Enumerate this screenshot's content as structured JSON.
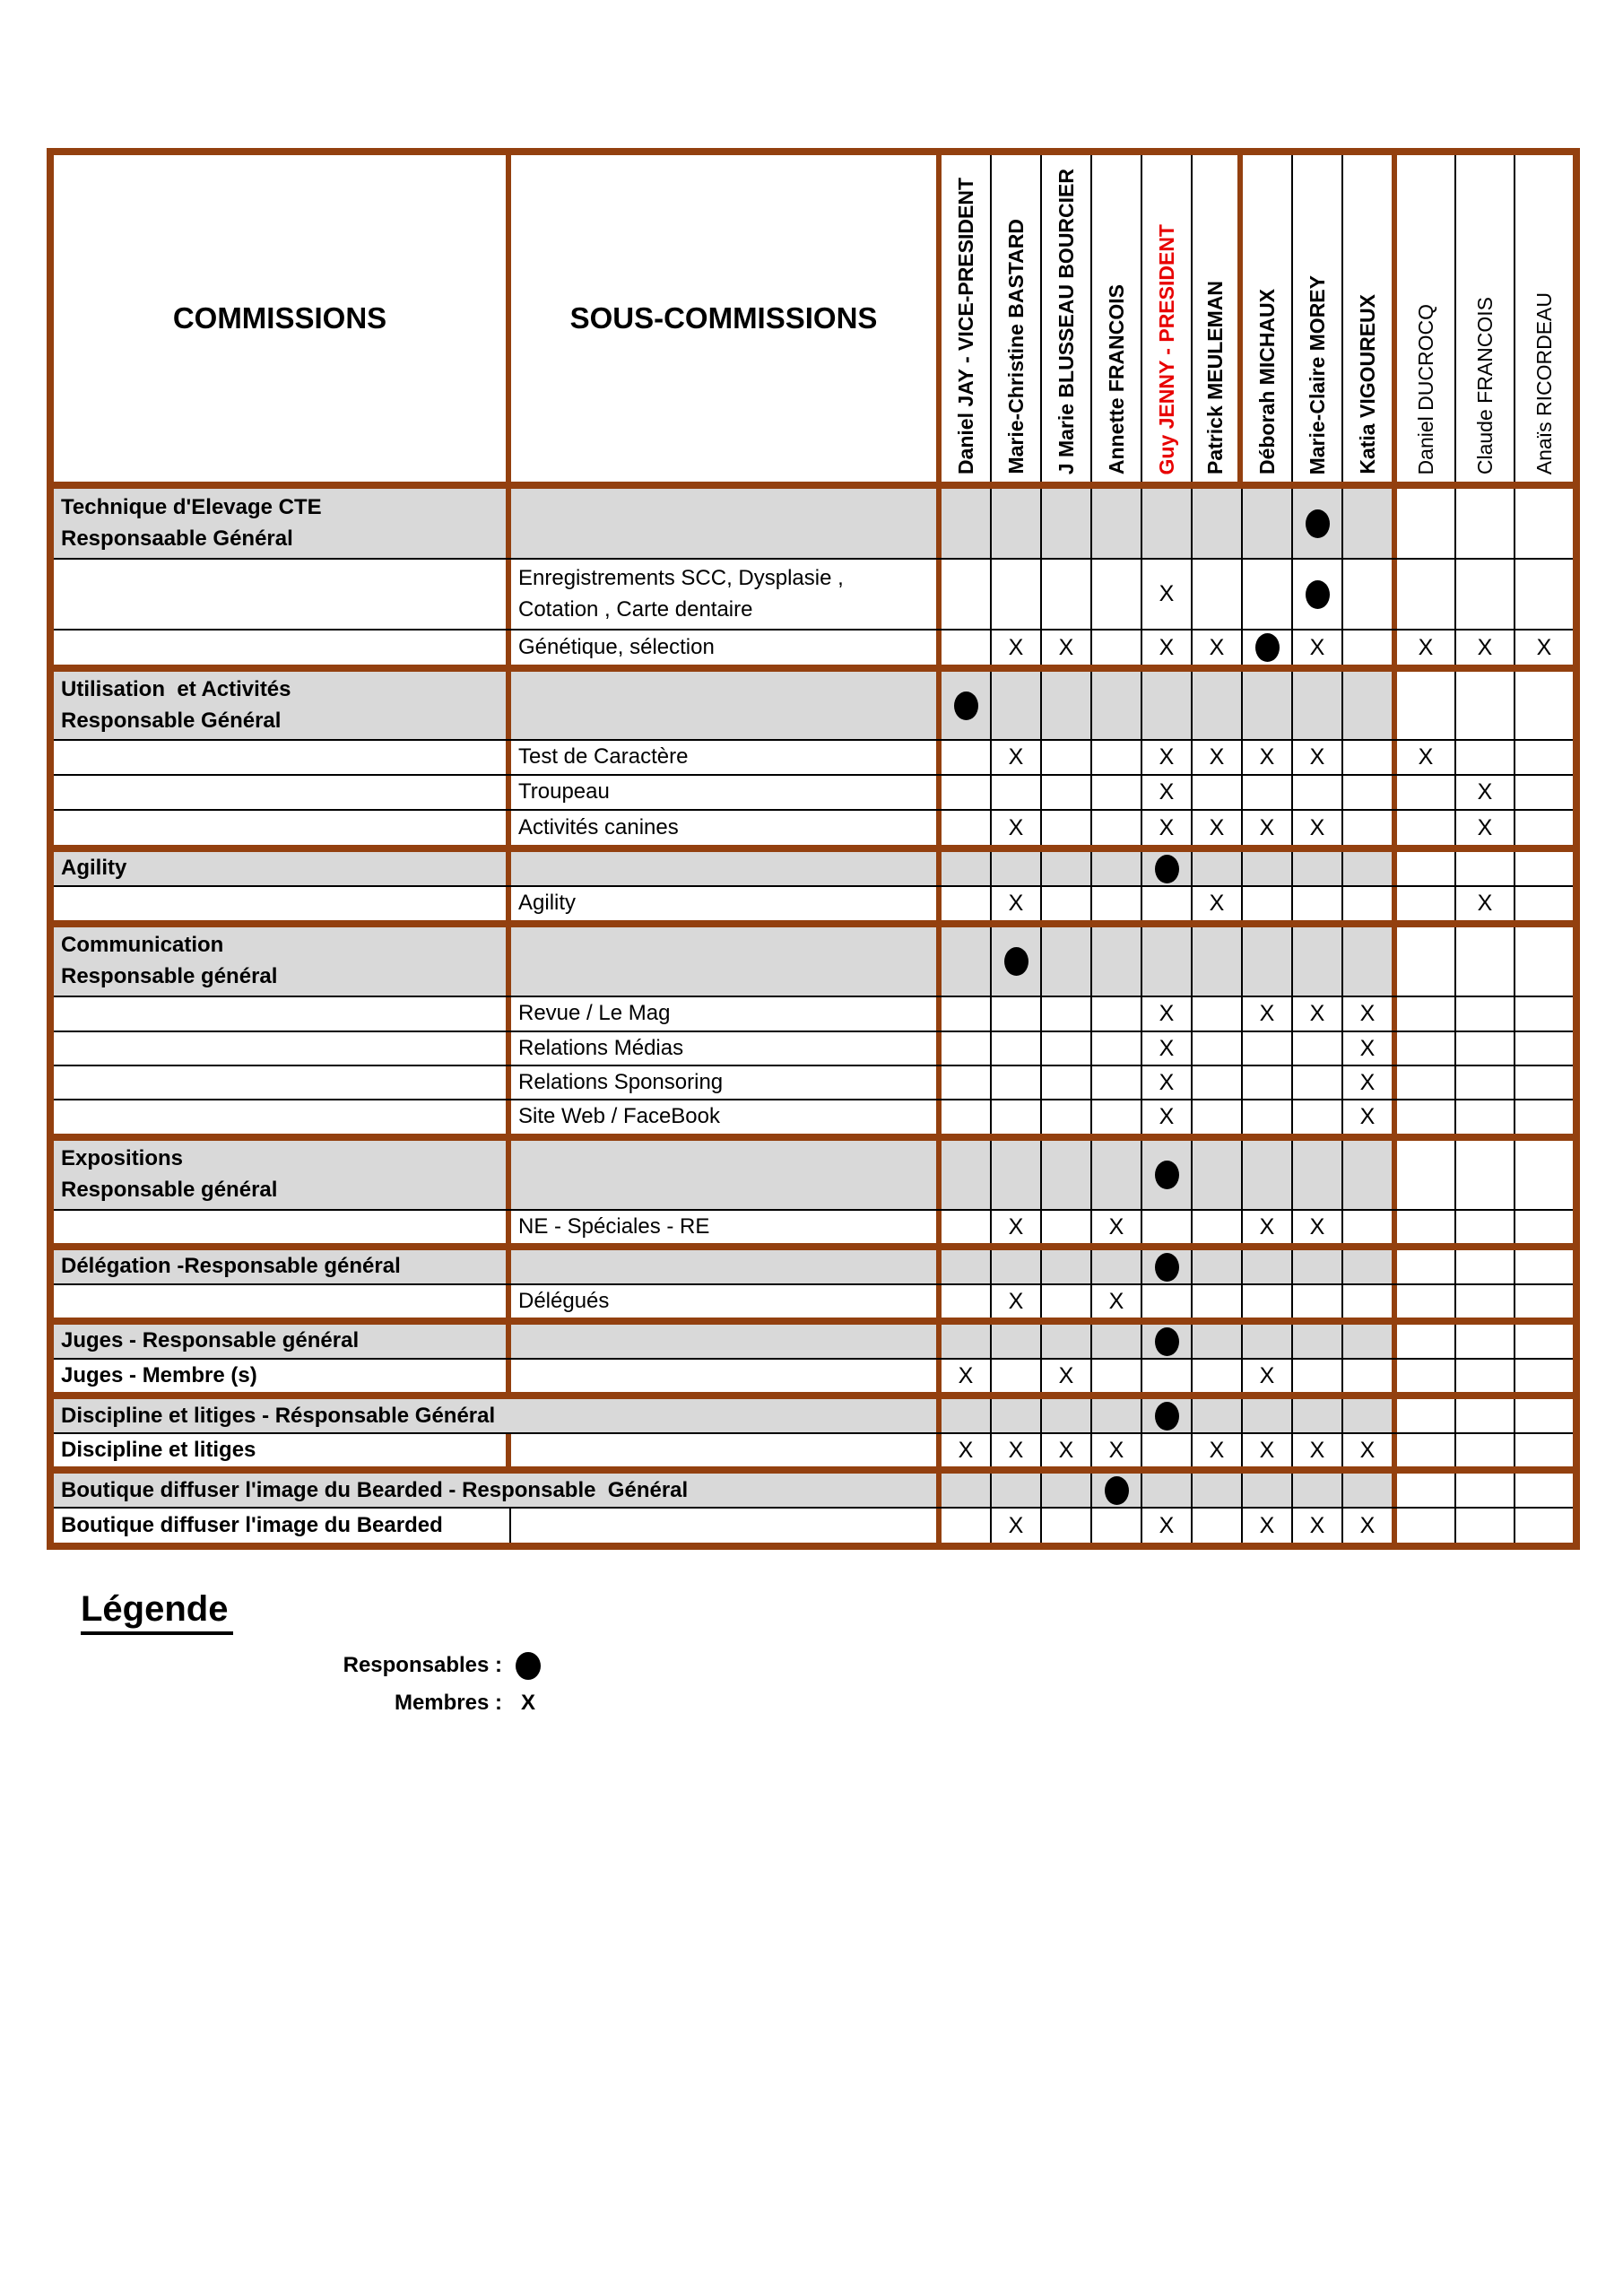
{
  "colors": {
    "border_brown": "#93400f",
    "row_gray": "#d9d9d9",
    "president_red": "#e80000"
  },
  "header": {
    "commissions_label": "COMMISSIONS",
    "sous_commissions_label": "SOUS-COMMISSIONS",
    "people": [
      {
        "name": "Daniel JAY - VICE-PRESIDENT",
        "bold": true,
        "red": false
      },
      {
        "name": "Marie-Christine BASTARD",
        "bold": true,
        "red": false
      },
      {
        "name": "J Marie BLUSSEAU BOURCIER",
        "bold": true,
        "red": false
      },
      {
        "name": "Annette FRANCOIS",
        "bold": true,
        "red": false
      },
      {
        "name": "Guy JENNY - PRESIDENT",
        "bold": true,
        "red": true
      },
      {
        "name": "Patrick MEULEMAN",
        "bold": true,
        "red": false
      },
      {
        "name": "Déborah MICHAUX",
        "bold": true,
        "red": false
      },
      {
        "name": "Marie-Claire MOREY",
        "bold": true,
        "red": false
      },
      {
        "name": "Katia VIGOUREUX",
        "bold": true,
        "red": false
      },
      {
        "name": "Daniel DUCROCQ",
        "bold": false,
        "red": false
      },
      {
        "name": "Claude FRANCOIS",
        "bold": false,
        "red": false
      },
      {
        "name": "Anaïs RICORDEAU",
        "bold": false,
        "red": false
      }
    ]
  },
  "marks_legend": {
    "responsable_symbol": "dot",
    "membre_symbol": "X"
  },
  "rows": [
    {
      "commission": "Technique d'Elevage CTE\nResponsaable Général",
      "sous": "",
      "gray": true,
      "merged": false,
      "h": 77,
      "end": false,
      "marks": [
        "",
        "",
        "",
        "",
        "",
        "",
        "",
        "R",
        "",
        "",
        "",
        ""
      ]
    },
    {
      "commission": "",
      "sous": "Enregistrements SCC, Dysplasie ,\nCotation , Carte dentaire",
      "gray": false,
      "merged": false,
      "h": 77,
      "end": false,
      "marks": [
        "",
        "",
        "",
        "",
        "X",
        "",
        "",
        "R",
        "",
        "",
        "",
        ""
      ]
    },
    {
      "commission": "",
      "sous": "Génétique, sélection",
      "gray": false,
      "merged": false,
      "h": 38,
      "end": true,
      "marks": [
        "",
        "X",
        "X",
        "",
        "X",
        "X",
        "R",
        "X",
        "",
        "X",
        "X",
        "X"
      ]
    },
    {
      "commission": "Utilisation  et Activités\nResponsable Général",
      "sous": "",
      "gray": true,
      "merged": false,
      "h": 75,
      "end": false,
      "marks": [
        "R",
        "",
        "",
        "",
        "",
        "",
        "",
        "",
        "",
        "",
        "",
        ""
      ]
    },
    {
      "commission": "",
      "sous": "Test de Caractère",
      "gray": false,
      "merged": false,
      "h": 37,
      "end": false,
      "marks": [
        "",
        "X",
        "",
        "",
        "X",
        "X",
        "X",
        "X",
        "",
        "X",
        "",
        ""
      ]
    },
    {
      "commission": "",
      "sous": "Troupeau",
      "gray": false,
      "merged": false,
      "h": 37,
      "end": false,
      "marks": [
        "",
        "",
        "",
        "",
        "X",
        "",
        "",
        "",
        "",
        "",
        "X",
        ""
      ]
    },
    {
      "commission": "",
      "sous": "Activités canines",
      "gray": false,
      "merged": false,
      "h": 38,
      "end": true,
      "marks": [
        "",
        "X",
        "",
        "",
        "X",
        "X",
        "X",
        "X",
        "",
        "",
        "X",
        ""
      ]
    },
    {
      "commission": "Agility",
      "sous": "",
      "gray": true,
      "merged": false,
      "h": 37,
      "end": false,
      "marks": [
        "",
        "",
        "",
        "",
        "R",
        "",
        "",
        "",
        "",
        "",
        "",
        ""
      ]
    },
    {
      "commission": "",
      "sous": "Agility",
      "gray": false,
      "merged": false,
      "h": 37,
      "end": true,
      "marks": [
        "",
        "X",
        "",
        "",
        "",
        "X",
        "",
        "",
        "",
        "",
        "X",
        ""
      ]
    },
    {
      "commission": "Communication\nResponsable général",
      "sous": "",
      "gray": true,
      "merged": false,
      "h": 76,
      "end": false,
      "marks": [
        "",
        "R",
        "",
        "",
        "",
        "",
        "",
        "",
        "",
        "",
        "",
        ""
      ]
    },
    {
      "commission": "",
      "sous": "Revue / Le Mag",
      "gray": false,
      "merged": false,
      "h": 37,
      "end": false,
      "marks": [
        "",
        "",
        "",
        "",
        "X",
        "",
        "X",
        "X",
        "X",
        "",
        "",
        ""
      ]
    },
    {
      "commission": "",
      "sous": "Relations Médias",
      "gray": false,
      "merged": false,
      "h": 36,
      "end": false,
      "marks": [
        "",
        "",
        "",
        "",
        "X",
        "",
        "",
        "",
        "X",
        "",
        "",
        ""
      ]
    },
    {
      "commission": "",
      "sous": "Relations Sponsoring",
      "gray": false,
      "merged": false,
      "h": 36,
      "end": false,
      "marks": [
        "",
        "",
        "",
        "",
        "X",
        "",
        "",
        "",
        "X",
        "",
        "",
        ""
      ]
    },
    {
      "commission": "",
      "sous": "Site Web / FaceBook",
      "gray": false,
      "merged": false,
      "h": 37,
      "end": true,
      "marks": [
        "",
        "",
        "",
        "",
        "X",
        "",
        "",
        "",
        "X",
        "",
        "",
        ""
      ]
    },
    {
      "commission": "Expositions\nResponsable général",
      "sous": "",
      "gray": true,
      "merged": false,
      "h": 76,
      "end": false,
      "marks": [
        "",
        "",
        "",
        "",
        "R",
        "",
        "",
        "",
        "",
        "",
        "",
        ""
      ]
    },
    {
      "commission": "",
      "sous": "NE - Spéciales - RE",
      "gray": false,
      "merged": false,
      "h": 36,
      "end": true,
      "marks": [
        "",
        "X",
        "",
        "X",
        "",
        "",
        "X",
        "X",
        "",
        "",
        "",
        ""
      ]
    },
    {
      "commission": "Délégation -Responsable général",
      "sous": "",
      "gray": true,
      "merged": false,
      "h": 37,
      "end": false,
      "marks": [
        "",
        "",
        "",
        "",
        "R",
        "",
        "",
        "",
        "",
        "",
        "",
        ""
      ]
    },
    {
      "commission": "",
      "sous": "Délégués",
      "gray": false,
      "merged": false,
      "h": 36,
      "end": true,
      "marks": [
        "",
        "X",
        "",
        "X",
        "",
        "",
        "",
        "",
        "",
        "",
        "",
        ""
      ]
    },
    {
      "commission": "Juges - Responsable général",
      "sous": "",
      "gray": true,
      "merged": false,
      "h": 37,
      "end": false,
      "marks": [
        "",
        "",
        "",
        "",
        "R",
        "",
        "",
        "",
        "",
        "",
        "",
        ""
      ]
    },
    {
      "commission": "Juges - Membre (s)",
      "sous": "",
      "gray": false,
      "merged": false,
      "h": 36,
      "end": true,
      "marks": [
        "X",
        "",
        "X",
        "",
        "",
        "",
        "X",
        "",
        "",
        "",
        "",
        ""
      ]
    },
    {
      "commission": "Discipline et litiges - Résponsable Général",
      "sous": "",
      "gray": true,
      "merged": true,
      "h": 37,
      "end": false,
      "marks": [
        "",
        "",
        "",
        "",
        "R",
        "",
        "",
        "",
        "",
        "",
        "",
        ""
      ]
    },
    {
      "commission": "Discipline et litiges",
      "sous": "",
      "gray": false,
      "merged": false,
      "h": 36,
      "end": true,
      "marks": [
        "X",
        "X",
        "X",
        "X",
        "",
        "X",
        "X",
        "X",
        "X",
        "",
        "",
        ""
      ]
    },
    {
      "commission": "Boutique diffuser l'image du Bearded - Responsable  Général",
      "sous": "",
      "gray": true,
      "merged": true,
      "h": 37,
      "end": false,
      "marks": [
        "",
        "",
        "",
        "R",
        "",
        "",
        "",
        "",
        "",
        "",
        "",
        ""
      ]
    },
    {
      "commission": "Boutique diffuser l'image du Bearded",
      "sous": "",
      "gray": false,
      "merged": false,
      "h": 38,
      "end": false,
      "final": true,
      "black_divider": true,
      "marks": [
        "",
        "X",
        "",
        "",
        "X",
        "",
        "X",
        "X",
        "X",
        "",
        "",
        ""
      ]
    }
  ],
  "legend": {
    "title": "Légende",
    "responsables_label": "Responsables :",
    "membres_label": "Membres :",
    "membres_symbol": "X"
  }
}
